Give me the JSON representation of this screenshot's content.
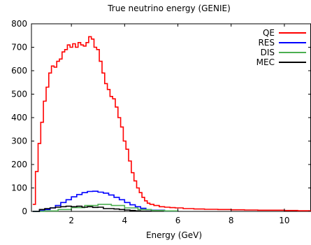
{
  "chart_data": {
    "type": "line",
    "title": "True neutrino energy (GENIE)",
    "xlabel": "Energy (GeV)",
    "ylabel": "",
    "xlim": [
      0.5,
      11
    ],
    "ylim": [
      0,
      800
    ],
    "xticks": [
      2,
      4,
      6,
      8,
      10
    ],
    "yticks": [
      0,
      100,
      200,
      300,
      400,
      500,
      600,
      700,
      800
    ],
    "grid": false,
    "legend_position": "top-right",
    "series": [
      {
        "name": "QE",
        "color": "#ff0000",
        "x": [
          0.55,
          0.65,
          0.75,
          0.85,
          0.95,
          1.05,
          1.15,
          1.25,
          1.35,
          1.45,
          1.55,
          1.65,
          1.75,
          1.85,
          1.95,
          2.05,
          2.15,
          2.25,
          2.35,
          2.45,
          2.55,
          2.65,
          2.75,
          2.85,
          2.95,
          3.05,
          3.15,
          3.25,
          3.35,
          3.45,
          3.55,
          3.65,
          3.75,
          3.85,
          3.95,
          4.05,
          4.15,
          4.25,
          4.35,
          4.45,
          4.55,
          4.65,
          4.75,
          4.85,
          4.95,
          5.1,
          5.3,
          5.5,
          5.7,
          5.9,
          6.2,
          6.6,
          7.0,
          7.5,
          8.0,
          8.5,
          9.0,
          9.5,
          10.0,
          10.5,
          11.0
        ],
        "y": [
          30,
          170,
          290,
          380,
          470,
          530,
          590,
          620,
          615,
          640,
          650,
          680,
          690,
          710,
          700,
          715,
          700,
          720,
          710,
          705,
          720,
          745,
          735,
          700,
          690,
          640,
          590,
          545,
          520,
          490,
          480,
          445,
          400,
          360,
          300,
          265,
          215,
          165,
          130,
          100,
          80,
          60,
          45,
          35,
          30,
          25,
          20,
          18,
          16,
          15,
          12,
          10,
          9,
          8,
          7,
          6,
          5,
          5,
          4,
          3,
          2
        ]
      },
      {
        "name": "RES",
        "color": "#0000ff",
        "x": [
          0.55,
          0.8,
          1.0,
          1.2,
          1.4,
          1.6,
          1.8,
          2.0,
          2.2,
          2.4,
          2.6,
          2.8,
          3.0,
          3.2,
          3.4,
          3.6,
          3.8,
          4.0,
          4.2,
          4.4,
          4.6,
          4.8,
          5.0,
          5.5,
          6.0
        ],
        "y": [
          0,
          3,
          8,
          15,
          25,
          38,
          50,
          62,
          72,
          80,
          85,
          86,
          82,
          78,
          70,
          60,
          50,
          38,
          28,
          20,
          13,
          8,
          5,
          2,
          1
        ]
      },
      {
        "name": "DIS",
        "color": "#4caf50",
        "x": [
          0.55,
          1.0,
          1.5,
          2.0,
          2.5,
          3.0,
          3.5,
          4.0,
          4.5,
          5.0,
          5.5,
          6.0
        ],
        "y": [
          0,
          2,
          8,
          16,
          25,
          30,
          25,
          15,
          8,
          4,
          2,
          1
        ]
      },
      {
        "name": "MEC",
        "color": "#000000",
        "x": [
          0.55,
          0.8,
          1.0,
          1.2,
          1.4,
          1.6,
          1.8,
          2.0,
          2.2,
          2.4,
          2.6,
          2.8,
          3.0,
          3.2,
          3.4,
          3.6,
          3.8,
          4.0,
          4.2,
          4.4,
          4.6,
          5.0
        ],
        "y": [
          0,
          8,
          12,
          15,
          18,
          20,
          22,
          20,
          22,
          18,
          20,
          17,
          18,
          12,
          12,
          10,
          8,
          6,
          4,
          2,
          1,
          0
        ]
      }
    ]
  }
}
